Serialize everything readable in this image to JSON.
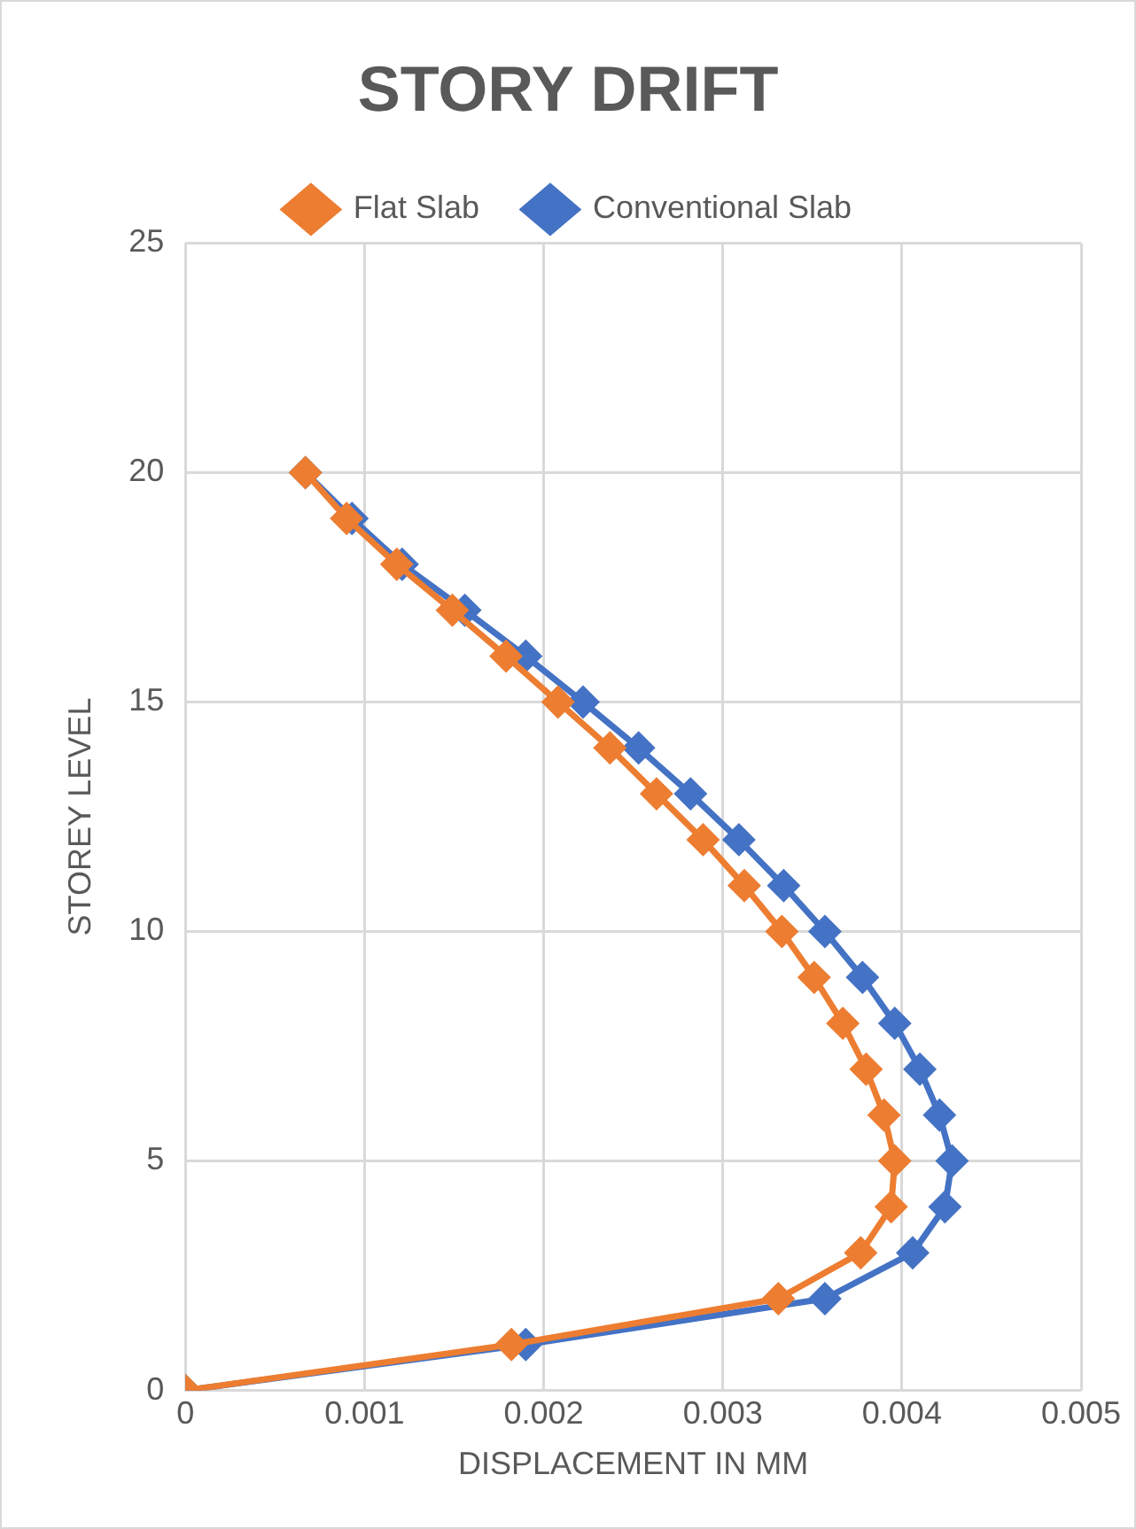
{
  "chart_data": {
    "type": "line",
    "title": "STORY DRIFT",
    "xlabel": "DISPLACEMENT IN MM",
    "ylabel": "STOREY LEVEL",
    "xlim": [
      0,
      0.005
    ],
    "xticks": [
      0,
      0.001,
      0.002,
      0.003,
      0.004,
      0.005
    ],
    "ylim": [
      0,
      25
    ],
    "yticks": [
      0,
      5,
      10,
      15,
      20,
      25
    ],
    "grid": true,
    "legend": "top",
    "marker": "diamond",
    "line_style": "solid",
    "series": [
      {
        "name": "Conventional Slab",
        "color": "#4472c4",
        "x": [
          0,
          0.0019,
          0.00357,
          0.00406,
          0.00424,
          0.00428,
          0.00421,
          0.0041,
          0.00396,
          0.00378,
          0.00357,
          0.00334,
          0.00309,
          0.00282,
          0.00253,
          0.00222,
          0.0019,
          0.00156,
          0.00121,
          0.00093,
          0.00067
        ],
        "values": [
          0,
          1,
          2,
          3,
          4,
          5,
          6,
          7,
          8,
          9,
          10,
          11,
          12,
          13,
          14,
          15,
          16,
          17,
          18,
          19,
          20
        ]
      },
      {
        "name": "Flat Slab",
        "color": "#ed7d31",
        "x": [
          0,
          0.00182,
          0.00331,
          0.00377,
          0.00394,
          0.00396,
          0.0039,
          0.0038,
          0.00367,
          0.00351,
          0.00333,
          0.00312,
          0.00289,
          0.00263,
          0.00237,
          0.00208,
          0.00179,
          0.00149,
          0.00118,
          0.0009,
          0.00067
        ],
        "values": [
          0,
          1,
          2,
          3,
          4,
          5,
          6,
          7,
          8,
          9,
          10,
          11,
          12,
          13,
          14,
          15,
          16,
          17,
          18,
          19,
          20
        ]
      }
    ]
  }
}
